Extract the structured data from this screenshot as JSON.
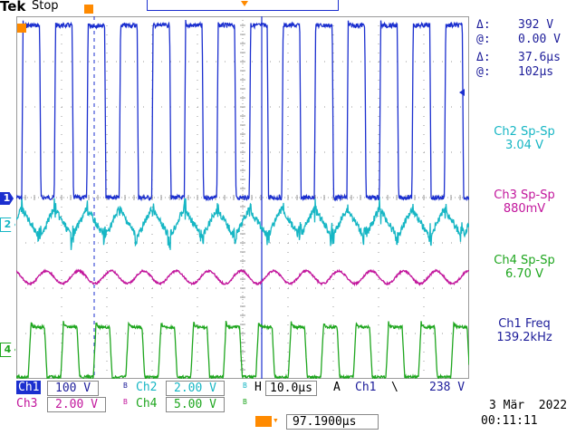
{
  "header": {
    "brand": "Tek",
    "state": "Stop"
  },
  "readouts": {
    "delta_v_sym": "Δ:",
    "delta_v": "392 V",
    "at_v_sym": "@:",
    "at_v": "0.00 V",
    "delta_t_sym": "Δ:",
    "delta_t": "37.6μs",
    "at_t_sym": "@:",
    "at_t": "102μs"
  },
  "measurements": [
    {
      "label": "Ch2 Sp-Sp",
      "value": "3.04 V",
      "color": "#16b6c4"
    },
    {
      "label": "Ch3 Sp-Sp",
      "value": "880mV",
      "color": "#c2169c"
    },
    {
      "label": "Ch4 Sp-Sp",
      "value": "6.70 V",
      "color": "#1fa61f"
    },
    {
      "label": "Ch1 Freq",
      "value": "139.2kHz",
      "color": "#1d1d9a"
    }
  ],
  "channels": {
    "ch1": {
      "label": "Ch1",
      "scale": "100 V",
      "color": "#1b2fcf",
      "marker": "1"
    },
    "ch2": {
      "label": "Ch2",
      "scale": "2.00 V",
      "color": "#16b6c4",
      "marker": "2"
    },
    "ch3": {
      "label": "Ch3",
      "scale": "2.00 V",
      "color": "#c2169c"
    },
    "ch4": {
      "label": "Ch4",
      "scale": "5.00 V",
      "color": "#1fa61f",
      "marker": "4"
    }
  },
  "bw_mark": "B",
  "horizontal": {
    "label": "H",
    "scale": "10.0μs"
  },
  "trigger": {
    "mode": "A",
    "source": "Ch1",
    "slope": "\\",
    "level": "238 V"
  },
  "position": {
    "value": "97.1900μs"
  },
  "date": "3 Mär  2022",
  "time": "00:11:11",
  "waveforms": {
    "ch1_period_us": 7.18,
    "ch1_duty": 0.55,
    "ch2_period_us": 7.18,
    "ch3_period_us": 7.18,
    "ch4_period_us": 7.18,
    "ch4_duty": 0.5
  },
  "colors": {
    "grid": "#9a9a9a",
    "trigger": "#ff8a00"
  }
}
